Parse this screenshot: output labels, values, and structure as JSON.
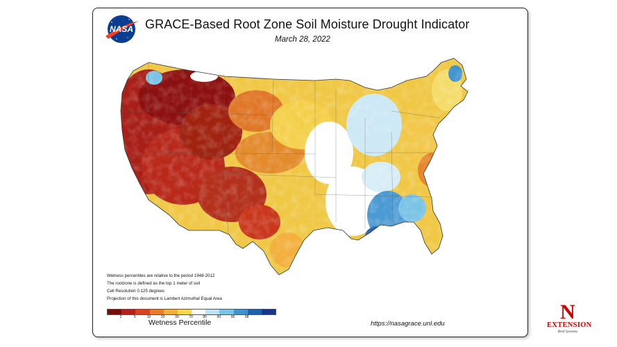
{
  "header": {
    "agency_logo": "NASA",
    "title": "GRACE-Based Root Zone Soil  Moisture Drought Indicator",
    "date": "March 28, 2022"
  },
  "notes": [
    "Wetness percentiles are relative to the period 1948-2012",
    "The rootzone is defined as the top 1 meter of soil",
    "Cell Resolution 0.125 degrees",
    "Projection of this document is Lambert Azimuthal Equal Area"
  ],
  "legend": {
    "title": "Wetness Percentile",
    "ticks": [
      "2",
      "5",
      "10",
      "20",
      "30",
      "70",
      "80",
      "90",
      "95",
      "98"
    ],
    "colors": [
      "#7a0c0c",
      "#b4201a",
      "#d9431f",
      "#ec7a2a",
      "#f3ae3c",
      "#f7d84a",
      "#ffffff",
      "#bfe3f2",
      "#7cc4e6",
      "#3f93cf",
      "#2060b0",
      "#17358a"
    ]
  },
  "url": "https://nasagrace.unl.edu",
  "extension_logo": {
    "letter": "N",
    "word": "EXTENSION",
    "sub": "Beef Systems"
  }
}
